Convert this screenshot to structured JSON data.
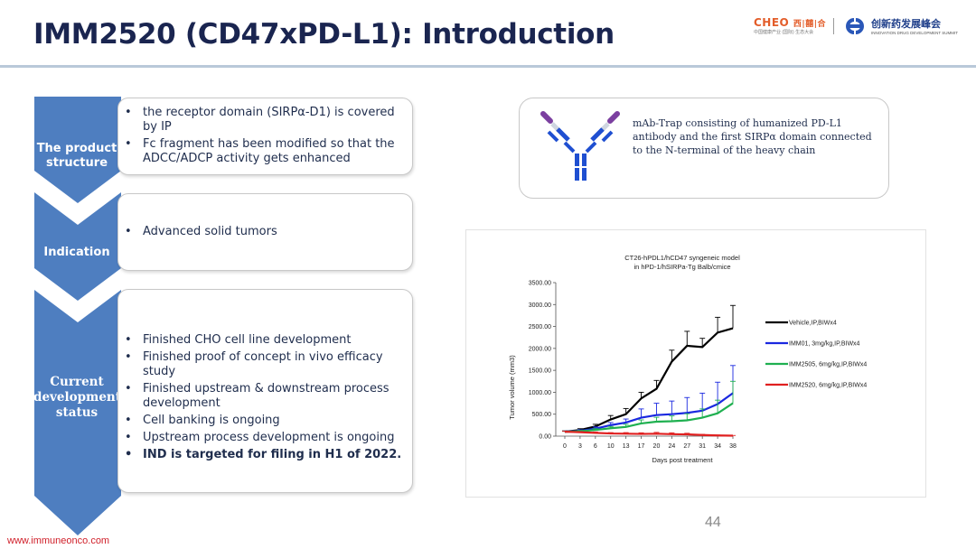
{
  "header": {
    "title": "IMM2520 (CD47xPD-L1): Introduction",
    "logo_left_main": "CHEO",
    "logo_left_accent": "西|囍|合",
    "logo_left_sub": "中国健康产业 (国际) 生态大会",
    "logo_right_cn": "创新药发展峰会",
    "logo_right_en": "INNOVATION DRUG DEVELOPMENT SUMMIT"
  },
  "sections": [
    {
      "label": "The product structure",
      "bullets": [
        {
          "text": "the receptor domain (SIRPα-D1) is covered by IP",
          "bold": false
        },
        {
          "text": "Fc fragment has been modified so that the ADCC/ADCP activity gets enhanced",
          "bold": false
        }
      ]
    },
    {
      "label": "Indication",
      "bullets": [
        {
          "text": "Advanced solid tumors",
          "bold": false
        }
      ]
    },
    {
      "label": "Current development status",
      "bullets": [
        {
          "text": "Finished CHO cell line development",
          "bold": false
        },
        {
          "text": "Finished proof of concept in vivo efficacy study",
          "bold": false
        },
        {
          "text": "Finished upstream & downstream process development",
          "bold": false
        },
        {
          "text": "Cell banking is ongoing",
          "bold": false
        },
        {
          "text": "Upstream process development is ongoing",
          "bold": false
        },
        {
          "text": "IND is targeted for filing in H1 of 2022.",
          "bold": true
        }
      ]
    }
  ],
  "callout": {
    "text": "mAb-Trap consisting of humanized PD-L1 antibody and the first SIRPα domain connected to the N-terminal of the heavy chain",
    "icon": "antibody-icon",
    "colors": {
      "chain": "#1f4fd1",
      "trap": "#7b3fa0",
      "hinge": "#cfd6e0"
    }
  },
  "chart_data": {
    "type": "line",
    "title_line1": "CT26-hPDL1/hCD47 syngeneic model",
    "title_line2": "in hPD-1/hSIRPa-Tg Balb/cmice",
    "xlabel": "Days post treatment",
    "ylabel": "Tumor volume (mm3)",
    "x": [
      0,
      3,
      6,
      10,
      13,
      17,
      20,
      24,
      27,
      31,
      34,
      38
    ],
    "yticks": [
      "0.00",
      "500.00",
      "1000.00",
      "1500.00",
      "2000.00",
      "2500.00",
      "3000.00",
      "3500.00"
    ],
    "ylim": [
      0,
      3500
    ],
    "legend_position": "right",
    "series": [
      {
        "name": "Vehicle,IP,BIWx4",
        "color": "#000000",
        "values": [
          100,
          140,
          220,
          380,
          500,
          860,
          1080,
          1700,
          2060,
          2030,
          2360,
          2460
        ],
        "errors": [
          20,
          30,
          50,
          90,
          130,
          140,
          190,
          260,
          330,
          200,
          350,
          520
        ]
      },
      {
        "name": "IMM01, 3mg/kg,IP,BIWx4",
        "color": "#1a28e0",
        "values": [
          100,
          120,
          170,
          250,
          310,
          420,
          480,
          500,
          530,
          580,
          730,
          980
        ],
        "errors": [
          15,
          25,
          40,
          60,
          80,
          200,
          270,
          300,
          350,
          400,
          500,
          630
        ]
      },
      {
        "name": "IMM2505, 6mg/kg,IP,BIWx4",
        "color": "#1fb050",
        "values": [
          100,
          110,
          140,
          180,
          210,
          290,
          330,
          340,
          360,
          420,
          520,
          750
        ],
        "errors": [
          10,
          20,
          30,
          40,
          60,
          80,
          100,
          120,
          150,
          200,
          300,
          500
        ]
      },
      {
        "name": "IMM2520, 6mg/kg,IP,BIWx4",
        "color": "#e02020",
        "values": [
          100,
          90,
          75,
          60,
          55,
          50,
          55,
          45,
          40,
          25,
          15,
          10
        ],
        "errors": [
          10,
          15,
          20,
          20,
          25,
          25,
          30,
          30,
          25,
          15,
          10,
          5
        ]
      }
    ]
  },
  "footer": {
    "page_number": "44",
    "url": "www.immuneonco.com"
  },
  "colors": {
    "chevron": "#4e7ec0",
    "title": "#1a2550",
    "rule": "#b9c9d9",
    "url": "#d0202a"
  }
}
